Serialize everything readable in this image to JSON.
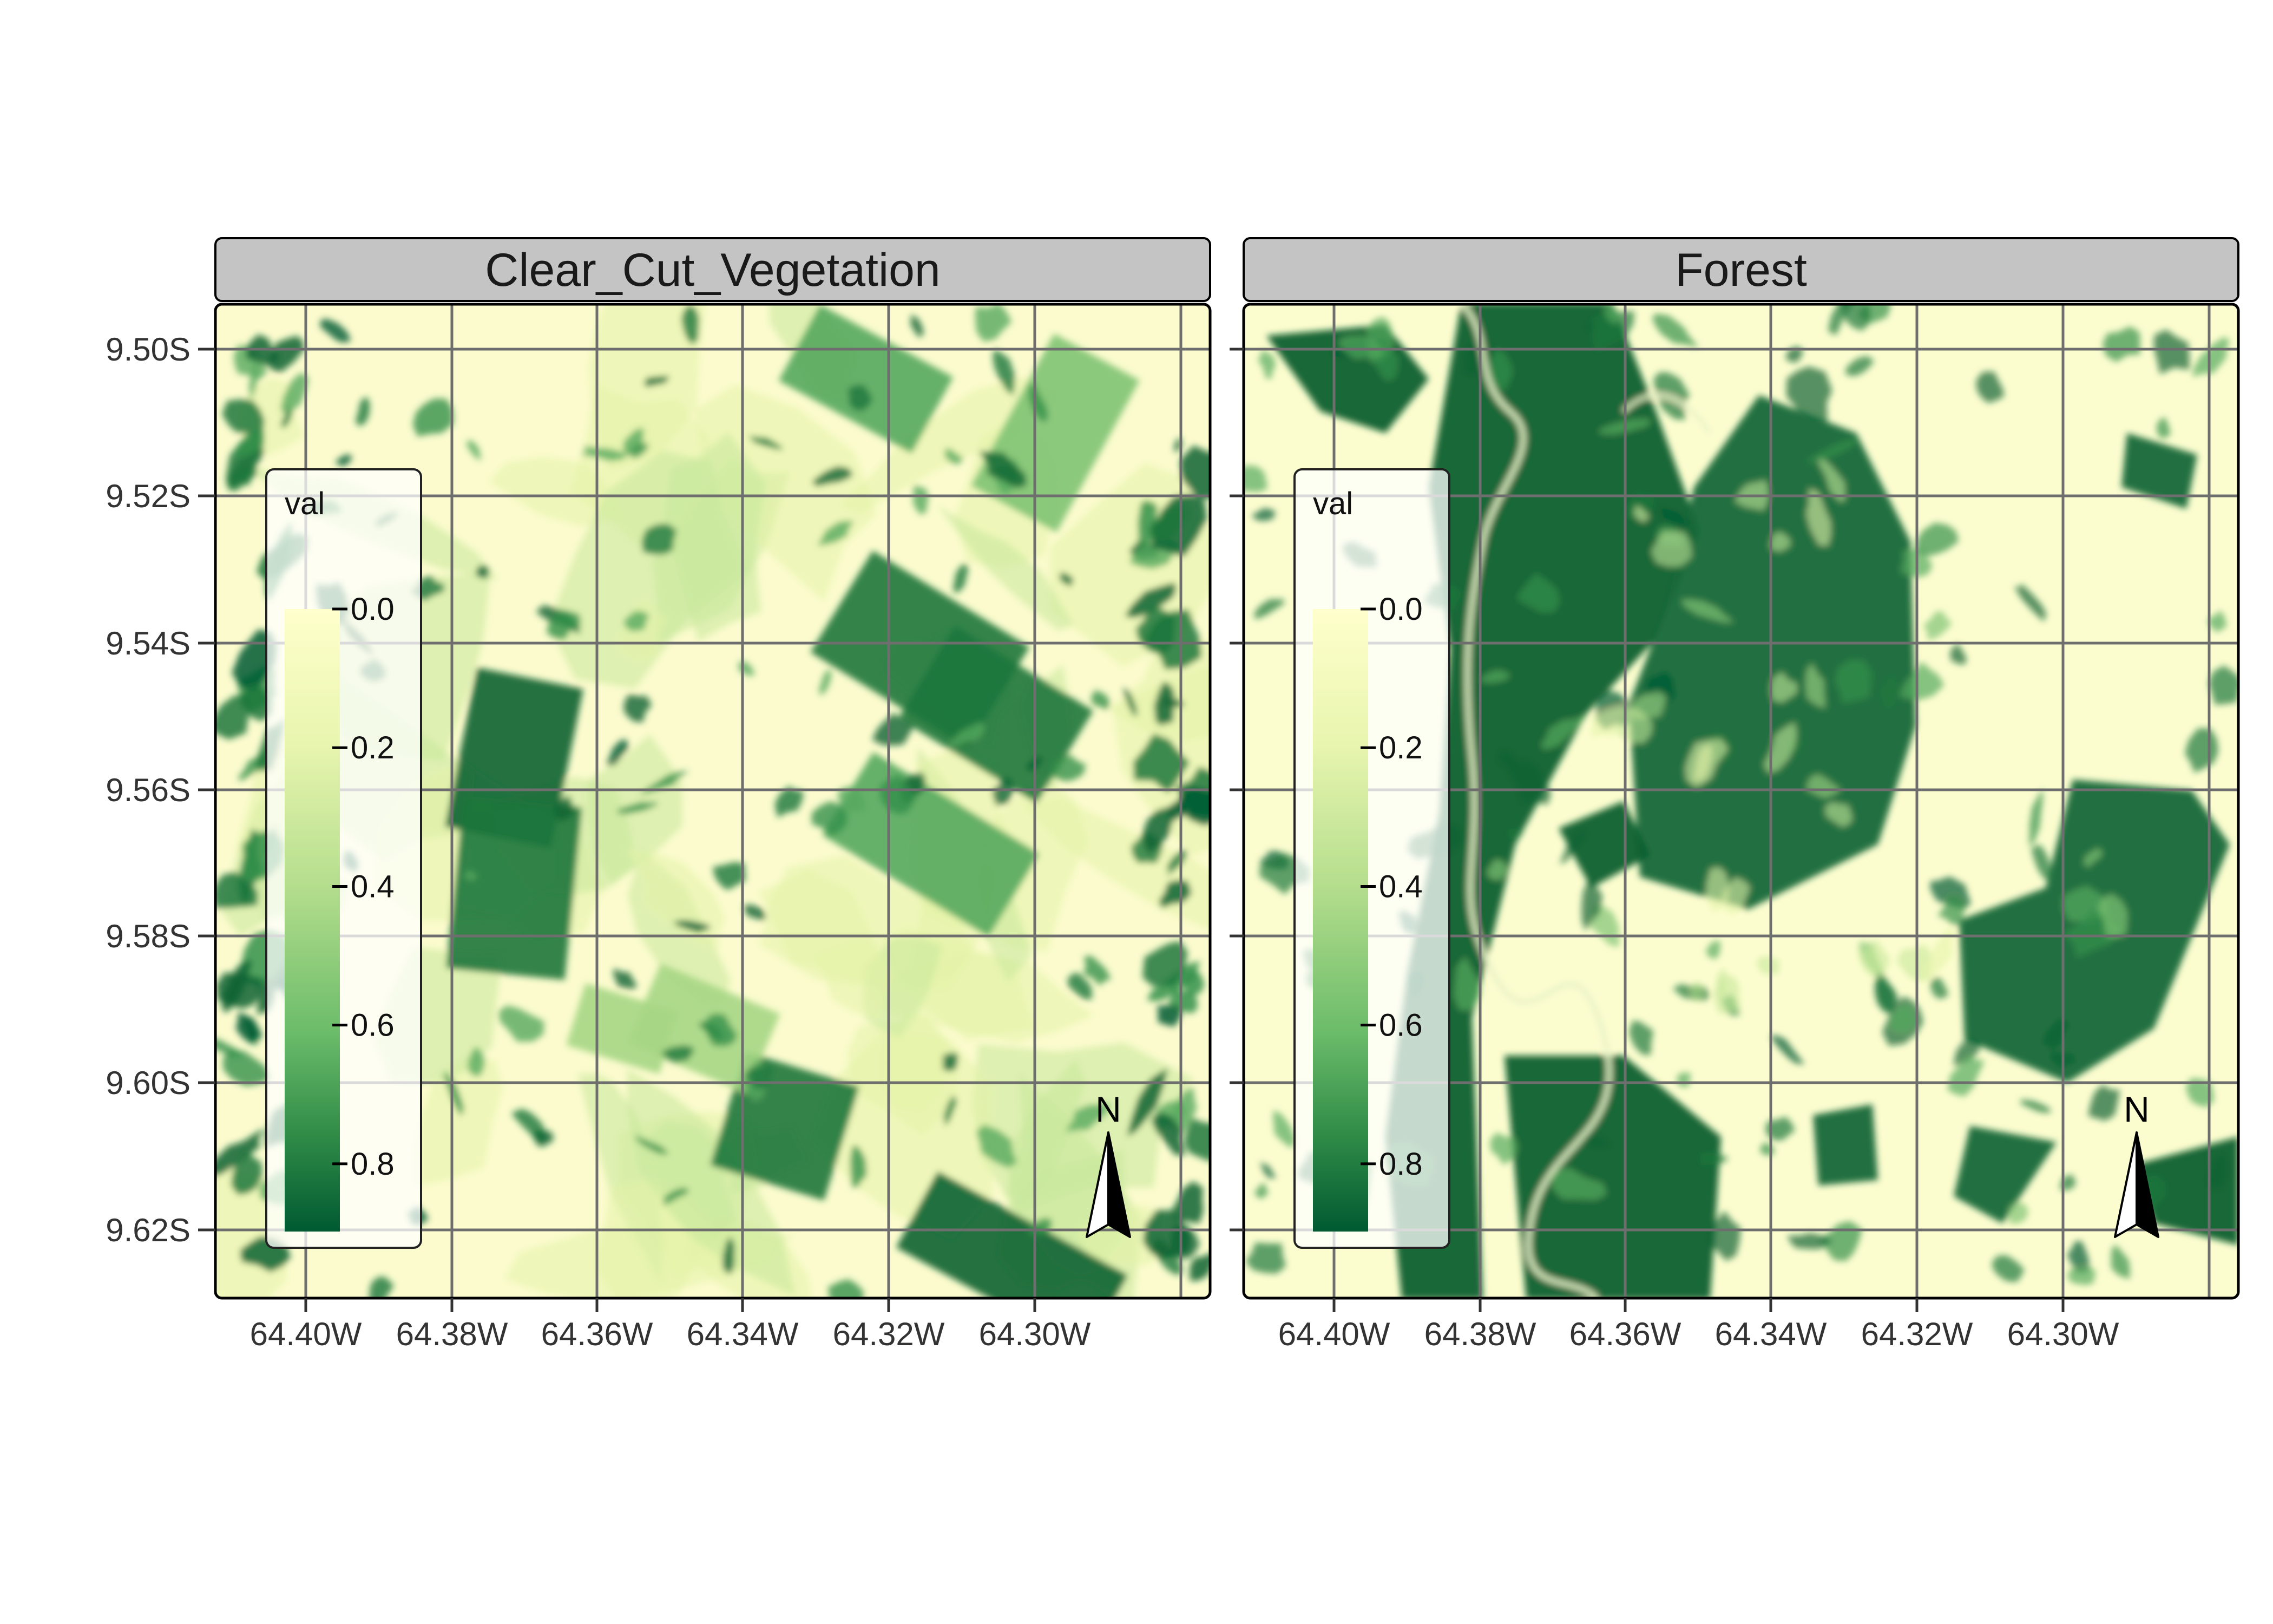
{
  "panels": [
    {
      "title": "Clear_Cut_Vegetation",
      "variant": "clear_cut"
    },
    {
      "title": "Forest",
      "variant": "forest"
    }
  ],
  "axes": {
    "y_labels": [
      "9.50S",
      "9.52S",
      "9.54S",
      "9.56S",
      "9.58S",
      "9.60S",
      "9.62S"
    ],
    "x_labels": [
      "64.40W",
      "64.38W",
      "64.36W",
      "64.34W",
      "64.32W",
      "64.30W"
    ]
  },
  "legend": {
    "title": "val",
    "breaks": [
      "0.0",
      "0.2",
      "0.4",
      "0.6",
      "0.8"
    ],
    "color_low": "#ffffcc",
    "color_mid": "#78c679",
    "color_high": "#005a32"
  },
  "north_arrow": {
    "label": "N"
  },
  "colors": {
    "strip_fill": "#c4c4c4",
    "grid_line": "#707070",
    "background_value": "#fdfdd0"
  }
}
